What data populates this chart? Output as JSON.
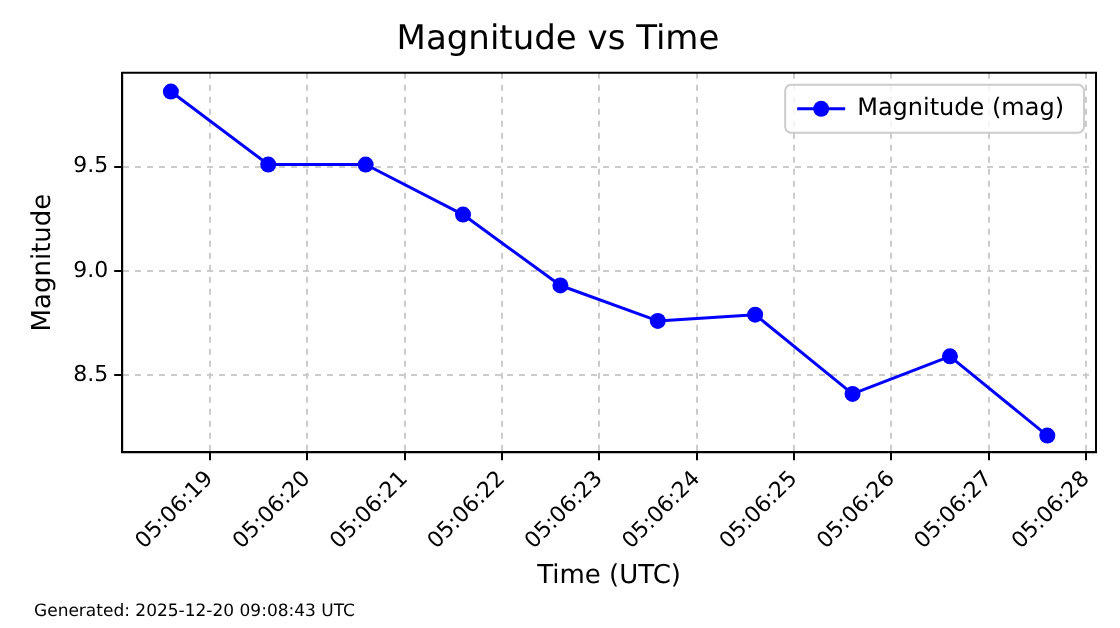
{
  "chart_data": {
    "type": "line",
    "title": "Magnitude vs Time",
    "xlabel": "Time (UTC)",
    "ylabel": "Magnitude",
    "x": [
      5.10516667,
      5.10544444,
      5.10572222,
      5.106,
      5.10627778,
      5.10655556,
      5.10683333,
      5.10711111,
      5.10738889,
      5.10766667
    ],
    "series": [
      {
        "name": "Magnitude (mag)",
        "color": "#0000ff",
        "values": [
          9.86,
          9.51,
          9.51,
          9.27,
          8.93,
          8.76,
          8.79,
          8.41,
          8.59,
          8.21
        ]
      }
    ],
    "xlim": [
      5.10502778,
      5.10780556
    ],
    "xticks": [
      {
        "value": 5.10527778,
        "label": "05:06:19"
      },
      {
        "value": 5.10555556,
        "label": "05:06:20"
      },
      {
        "value": 5.10583333,
        "label": "05:06:21"
      },
      {
        "value": 5.10611111,
        "label": "05:06:22"
      },
      {
        "value": 5.10638889,
        "label": "05:06:23"
      },
      {
        "value": 5.10666667,
        "label": "05:06:24"
      },
      {
        "value": 5.10694444,
        "label": "05:06:25"
      },
      {
        "value": 5.10722222,
        "label": "05:06:26"
      },
      {
        "value": 5.1075,
        "label": "05:06:27"
      },
      {
        "value": 5.10777778,
        "label": "05:06:28"
      }
    ],
    "ylim": [
      8.13,
      9.95
    ],
    "yticks": [
      8.5,
      {
        "value": 9,
        "label": "9.0"
      },
      9.5
    ],
    "grid": true,
    "legend": "top right",
    "marker": "circle",
    "line_style": "solid",
    "annotations": [
      "Generated: 2025-12-20 09:08:43 UTC"
    ]
  }
}
